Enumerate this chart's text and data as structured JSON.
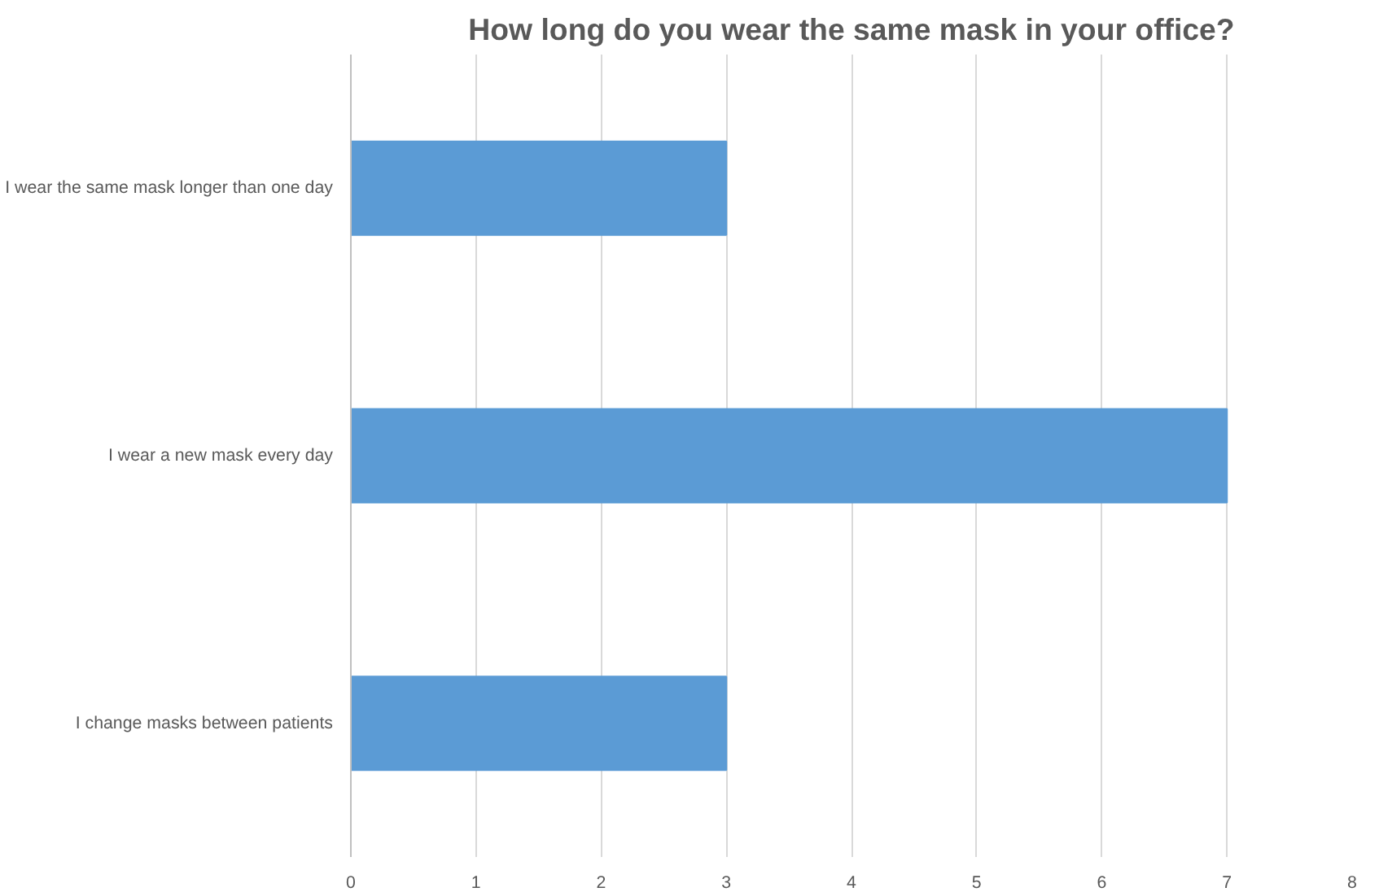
{
  "chart_data": {
    "type": "bar",
    "orientation": "horizontal",
    "title": "How long do you wear the same mask in your office?",
    "categories": [
      "I wear the same mask longer than one day",
      "I wear a new mask every day",
      "I change masks between patients"
    ],
    "values": [
      3,
      7,
      3
    ],
    "color": "#5b9bd5",
    "xlim": [
      0,
      8
    ],
    "xticks": [
      0,
      1,
      2,
      3,
      4,
      5,
      6,
      7,
      8
    ],
    "grid": "x"
  }
}
